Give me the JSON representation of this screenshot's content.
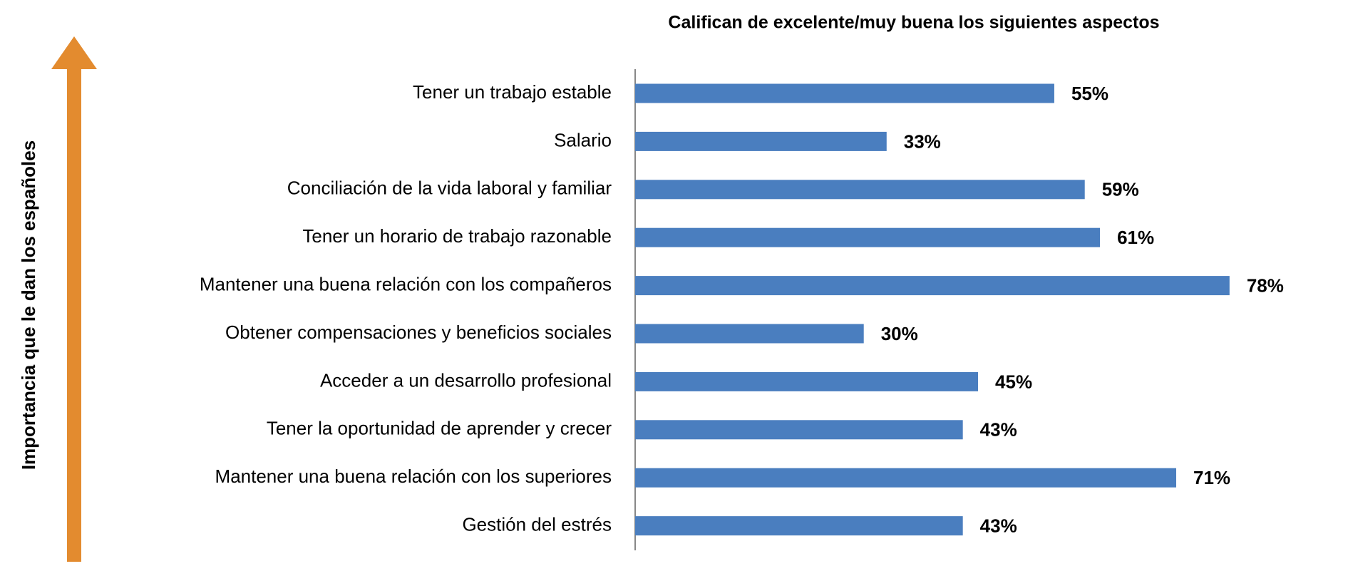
{
  "chart_data": {
    "type": "bar",
    "orientation": "horizontal",
    "title": "Califican de excelente/muy buena los siguientes aspectos",
    "y_label": "Importancia que le dan los españoles",
    "categories": [
      "Tener un trabajo estable",
      "Salario",
      "Conciliación de la vida laboral y familiar",
      "Tener un horario de trabajo razonable",
      "Mantener una buena relación con los compañeros",
      "Obtener compensaciones y beneficios sociales",
      "Acceder a un desarrollo profesional",
      "Tener la oportunidad de aprender y crecer",
      "Mantener una buena relación con los superiores",
      "Gestión del estrés"
    ],
    "values": [
      55,
      33,
      59,
      61,
      78,
      30,
      45,
      43,
      71,
      43
    ],
    "value_labels": [
      "55%",
      "33%",
      "59%",
      "61%",
      "78%",
      "30%",
      "45%",
      "43%",
      "71%",
      "43%"
    ],
    "color": "#4a7ebf"
  }
}
